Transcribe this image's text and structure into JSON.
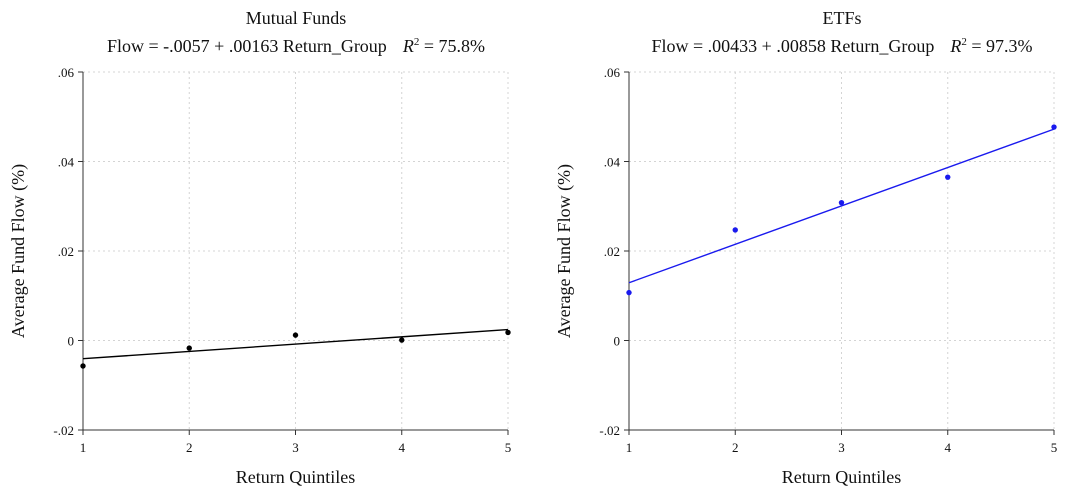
{
  "chart_data": [
    {
      "type": "scatter",
      "title": "Mutual Funds",
      "subtitle_equation": "Flow = -.0057 + .00163 Return_Group",
      "subtitle_r2_symbol": "R",
      "subtitle_r2_sup": "2",
      "subtitle_r2_value": " = 75.8%",
      "xlabel": "Return Quintiles",
      "ylabel": "Average Fund Flow (%)",
      "xlim": [
        1,
        5
      ],
      "ylim": [
        -0.02,
        0.06
      ],
      "x_ticks": [
        1,
        2,
        3,
        4,
        5
      ],
      "x_tick_labels": [
        "1",
        "2",
        "3",
        "4",
        "5"
      ],
      "y_ticks": [
        -0.02,
        0,
        0.02,
        0.04,
        0.06
      ],
      "y_tick_labels": [
        "-.02",
        "0",
        ".02",
        ".04",
        ".06"
      ],
      "grid": true,
      "series": [
        {
          "kind": "points",
          "color": "#000000",
          "x": [
            1,
            2,
            3,
            4,
            5
          ],
          "y": [
            -0.0057,
            -0.0017,
            0.0012,
            0.0001,
            0.0018
          ]
        },
        {
          "kind": "fit_line",
          "color": "#000000",
          "intercept": -0.0057,
          "slope": 0.00163
        }
      ]
    },
    {
      "type": "scatter",
      "title": "ETFs",
      "subtitle_equation": "Flow = .00433 + .00858 Return_Group",
      "subtitle_r2_symbol": "R",
      "subtitle_r2_sup": "2",
      "subtitle_r2_value": " = 97.3%",
      "xlabel": "Return Quintiles",
      "ylabel": "Average Fund Flow (%)",
      "xlim": [
        1,
        5
      ],
      "ylim": [
        -0.02,
        0.06
      ],
      "x_ticks": [
        1,
        2,
        3,
        4,
        5
      ],
      "x_tick_labels": [
        "1",
        "2",
        "3",
        "4",
        "5"
      ],
      "y_ticks": [
        -0.02,
        0,
        0.02,
        0.04,
        0.06
      ],
      "y_tick_labels": [
        "-.02",
        "0",
        ".02",
        ".04",
        ".06"
      ],
      "grid": true,
      "series": [
        {
          "kind": "points",
          "color": "#1a1aee",
          "x": [
            1,
            2,
            3,
            4,
            5
          ],
          "y": [
            0.0107,
            0.0247,
            0.0308,
            0.0365,
            0.0477
          ]
        },
        {
          "kind": "fit_line",
          "color": "#1a1aee",
          "intercept": 0.00433,
          "slope": 0.00858
        }
      ]
    }
  ]
}
